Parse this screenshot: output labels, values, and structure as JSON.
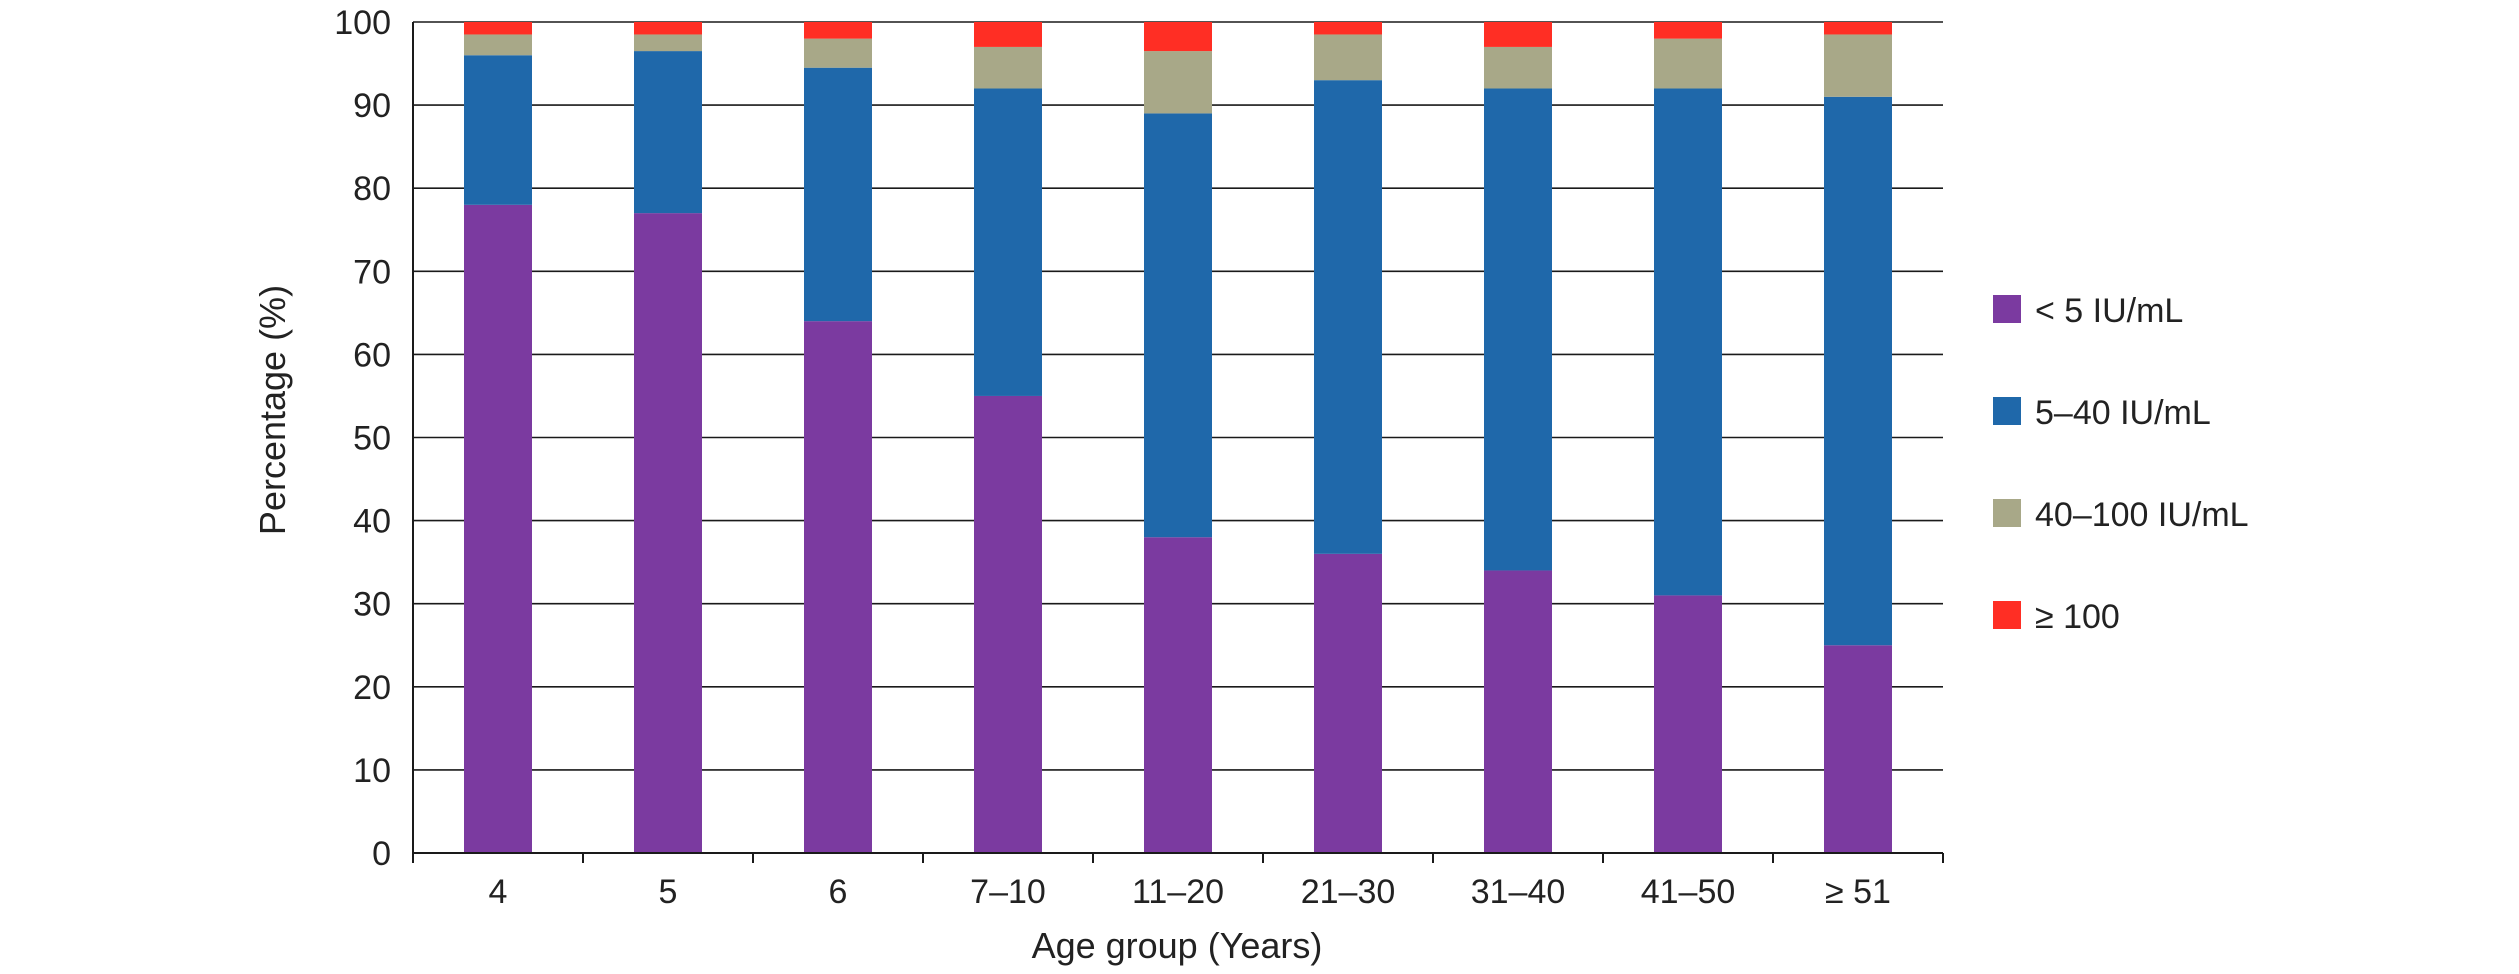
{
  "chart_data": {
    "type": "bar",
    "stacked": true,
    "categories": [
      "4",
      "5",
      "6",
      "7–10",
      "11–20",
      "21–30",
      "31–40",
      "41–50",
      "≥ 51"
    ],
    "series": [
      {
        "name": "< 5 IU/mL",
        "color": "#7B3AA0",
        "values": [
          78,
          77,
          64,
          55,
          38,
          36,
          34,
          31,
          25
        ]
      },
      {
        "name": "5–40 IU/mL",
        "color": "#1F68AA",
        "values": [
          18,
          19.5,
          30.5,
          37,
          51,
          57,
          58,
          61,
          66
        ]
      },
      {
        "name": "40–100 IU/mL",
        "color": "#A8A888",
        "values": [
          2.5,
          2,
          3.5,
          5,
          7.5,
          5.5,
          5,
          6,
          7.5
        ]
      },
      {
        "name": "≥ 100",
        "color": "#FF2E24",
        "values": [
          1.5,
          1.5,
          2,
          3,
          3.5,
          1.5,
          3,
          2,
          1.5
        ]
      }
    ],
    "xlabel": "Age group (Years)",
    "ylabel": "Percentage (%)",
    "ylim": [
      0,
      100
    ],
    "yticks": [
      "0",
      "10",
      "20",
      "30",
      "40",
      "50",
      "60",
      "70",
      "80",
      "90",
      "100"
    ],
    "grid": true,
    "legend_position": "right"
  }
}
